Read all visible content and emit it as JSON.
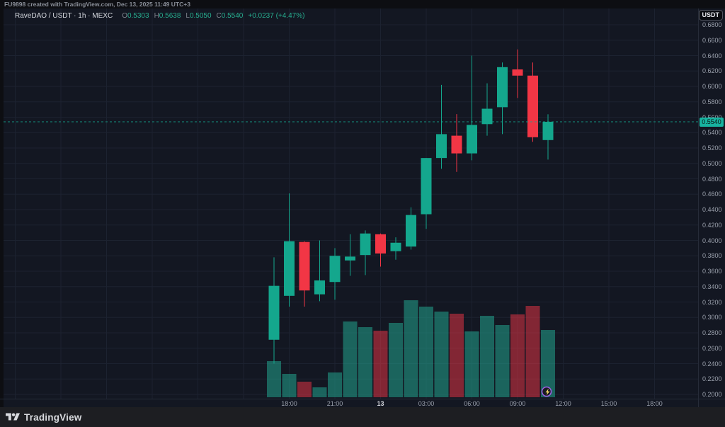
{
  "attribution": {
    "text": "FU9898 created with TradingView.com, Dec 13, 2025 11:49 UTC+3"
  },
  "legend": {
    "title": "RaveDAO / USDT · 1h · MEXC",
    "ohlc": [
      {
        "label": "O",
        "value": "0.5303"
      },
      {
        "label": "H",
        "value": "0.5638"
      },
      {
        "label": "L",
        "value": "0.5050"
      },
      {
        "label": "C",
        "value": "0.5540"
      }
    ],
    "change": "+0.0237 (+4.47%)"
  },
  "price_axis": {
    "currency_label": "USDT",
    "last_price": "0.5540",
    "labels": [
      "0.6800",
      "0.6600",
      "0.6400",
      "0.6200",
      "0.6000",
      "0.5800",
      "0.5600",
      "0.5400",
      "0.5200",
      "0.5000",
      "0.4800",
      "0.4600",
      "0.4400",
      "0.4200",
      "0.4000",
      "0.3800",
      "0.3600",
      "0.3400",
      "0.3200",
      "0.3000",
      "0.2800",
      "0.2600",
      "0.2400",
      "0.2200",
      "0.2000"
    ]
  },
  "time_axis": {
    "labels": [
      {
        "text": "18:00",
        "slot": 1
      },
      {
        "text": "21:00",
        "slot": 4
      },
      {
        "text": "13",
        "slot": 7,
        "emphasis": true
      },
      {
        "text": "03:00",
        "slot": 10
      },
      {
        "text": "06:00",
        "slot": 13
      },
      {
        "text": "09:00",
        "slot": 16
      },
      {
        "text": "12:00",
        "slot": 19
      },
      {
        "text": "15:00",
        "slot": 22
      },
      {
        "text": "18:00",
        "slot": 25
      }
    ]
  },
  "footer": {
    "brand": "TradingView"
  },
  "badge": {
    "icon": "lightning-bolt"
  },
  "colors": {
    "up": "#14a78d",
    "down": "#f23645",
    "volume_up": "rgba(34,171,148,0.52)",
    "volume_down": "rgba(242,54,69,0.50)",
    "accent_price_tag": "#17b3a0",
    "grid": "#1c2230",
    "axis_text": "#9aa0ac",
    "pane_bg": "#131722",
    "outer_bg": "#0d0e12",
    "footer_bg": "#1d1e22",
    "footer_text": "#d8dade",
    "legend_text": "#d5d8de",
    "legend_label": "#80858f",
    "legend_value": "#27ae8f",
    "attribution_text": "#8a8f99",
    "border": "#262b38",
    "badge_ring": "#a35fe8",
    "badge_bolt": "#f5d565"
  },
  "chart_data": {
    "type": "candlestick",
    "symbol": "RaveDAO / USDT",
    "exchange": "MEXC",
    "interval": "1h",
    "session": "Dec 12 17:00 – Dec 13 11:00 (UTC+3), 2025",
    "ylim": [
      0.2,
      0.68
    ],
    "grid": true,
    "last_price": 0.554,
    "volume_units": "relative bar height",
    "candles": [
      {
        "time": "17:00",
        "o": 0.271,
        "h": 0.378,
        "l": 0.24,
        "c": 0.341,
        "v": 51
      },
      {
        "time": "18:00",
        "o": 0.328,
        "h": 0.461,
        "l": 0.314,
        "c": 0.399,
        "v": 33
      },
      {
        "time": "19:00",
        "o": 0.398,
        "h": 0.399,
        "l": 0.314,
        "c": 0.335,
        "v": 22
      },
      {
        "time": "20:00",
        "o": 0.33,
        "h": 0.4,
        "l": 0.321,
        "c": 0.348,
        "v": 14
      },
      {
        "time": "21:00",
        "o": 0.346,
        "h": 0.39,
        "l": 0.323,
        "c": 0.38,
        "v": 35
      },
      {
        "time": "22:00",
        "o": 0.374,
        "h": 0.408,
        "l": 0.354,
        "c": 0.379,
        "v": 107
      },
      {
        "time": "23:00",
        "o": 0.381,
        "h": 0.413,
        "l": 0.355,
        "c": 0.409,
        "v": 99
      },
      {
        "time": "00:00",
        "o": 0.408,
        "h": 0.409,
        "l": 0.366,
        "c": 0.383,
        "v": 94
      },
      {
        "time": "01:00",
        "o": 0.386,
        "h": 0.404,
        "l": 0.375,
        "c": 0.397,
        "v": 105
      },
      {
        "time": "02:00",
        "o": 0.392,
        "h": 0.443,
        "l": 0.388,
        "c": 0.433,
        "v": 137
      },
      {
        "time": "03:00",
        "o": 0.434,
        "h": 0.507,
        "l": 0.415,
        "c": 0.507,
        "v": 128
      },
      {
        "time": "04:00",
        "o": 0.507,
        "h": 0.602,
        "l": 0.493,
        "c": 0.538,
        "v": 121
      },
      {
        "time": "05:00",
        "o": 0.536,
        "h": 0.564,
        "l": 0.489,
        "c": 0.513,
        "v": 118
      },
      {
        "time": "06:00",
        "o": 0.513,
        "h": 0.64,
        "l": 0.504,
        "c": 0.55,
        "v": 93
      },
      {
        "time": "07:00",
        "o": 0.551,
        "h": 0.604,
        "l": 0.536,
        "c": 0.571,
        "v": 115
      },
      {
        "time": "08:00",
        "o": 0.573,
        "h": 0.631,
        "l": 0.538,
        "c": 0.625,
        "v": 102
      },
      {
        "time": "09:00",
        "o": 0.622,
        "h": 0.648,
        "l": 0.585,
        "c": 0.614,
        "v": 117
      },
      {
        "time": "10:00",
        "o": 0.614,
        "h": 0.631,
        "l": 0.528,
        "c": 0.534,
        "v": 129
      },
      {
        "time": "11:00",
        "o": 0.5303,
        "h": 0.5638,
        "l": 0.505,
        "c": 0.554,
        "v": 95
      }
    ]
  }
}
